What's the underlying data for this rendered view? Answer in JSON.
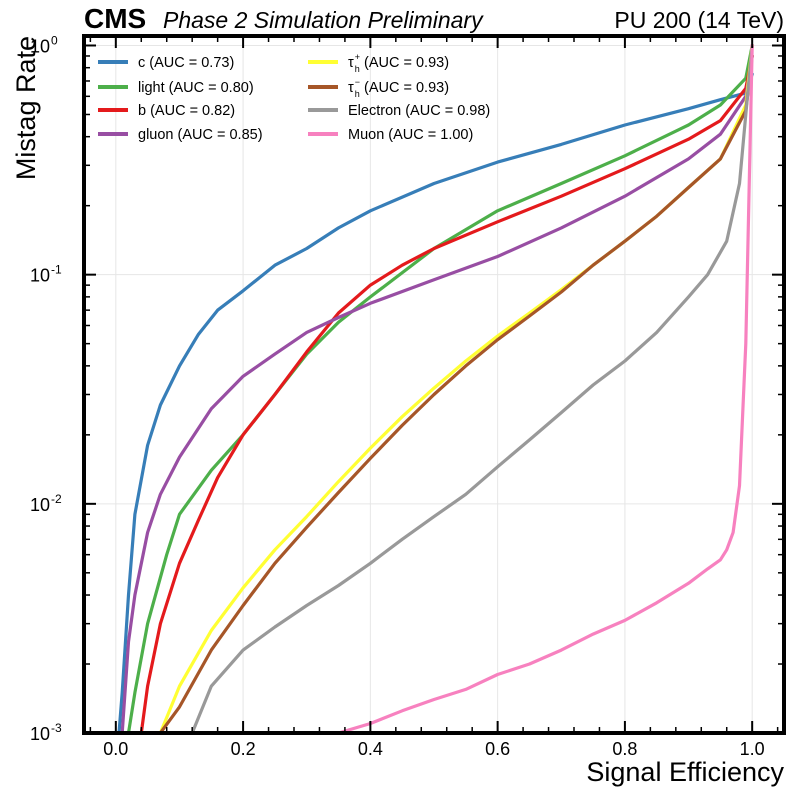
{
  "header": {
    "experiment": "CMS",
    "status": "Phase 2 Simulation Preliminary",
    "conditions": "PU 200 (14 TeV)"
  },
  "chart_data": {
    "type": "line",
    "title": "",
    "xlabel": "Signal Efficiency",
    "ylabel": "Mistag Rate",
    "xlim": [
      -0.05,
      1.05
    ],
    "ylim": [
      0.001,
      1.1
    ],
    "yscale": "log",
    "grid": true,
    "legend_position": "top-left",
    "x_ticks": [
      "0.0",
      "0.2",
      "0.4",
      "0.6",
      "0.8",
      "1.0"
    ],
    "y_ticks": [
      {
        "base": "10",
        "exp": "-3"
      },
      {
        "base": "10",
        "exp": "-2"
      },
      {
        "base": "10",
        "exp": "-1"
      },
      {
        "base": "10",
        "exp": "0"
      }
    ],
    "series": [
      {
        "name": "c",
        "label": "c (AUC = 0.73)",
        "color": "#377eb8",
        "x": [
          0.005,
          0.01,
          0.02,
          0.03,
          0.05,
          0.07,
          0.1,
          0.13,
          0.16,
          0.2,
          0.25,
          0.3,
          0.35,
          0.4,
          0.5,
          0.6,
          0.7,
          0.8,
          0.9,
          0.95,
          0.99,
          1.0
        ],
        "y": [
          0.001,
          0.0015,
          0.004,
          0.009,
          0.018,
          0.027,
          0.04,
          0.055,
          0.07,
          0.085,
          0.11,
          0.13,
          0.16,
          0.19,
          0.25,
          0.31,
          0.37,
          0.45,
          0.53,
          0.58,
          0.62,
          0.75
        ]
      },
      {
        "name": "light",
        "label": "light (AUC = 0.80)",
        "color": "#4daf4a",
        "x": [
          0.02,
          0.03,
          0.05,
          0.08,
          0.1,
          0.15,
          0.2,
          0.25,
          0.3,
          0.35,
          0.4,
          0.5,
          0.6,
          0.7,
          0.8,
          0.9,
          0.95,
          0.99,
          1.0
        ],
        "y": [
          0.001,
          0.0015,
          0.003,
          0.006,
          0.009,
          0.014,
          0.02,
          0.03,
          0.045,
          0.062,
          0.08,
          0.13,
          0.19,
          0.25,
          0.33,
          0.45,
          0.55,
          0.72,
          1.0
        ]
      },
      {
        "name": "b",
        "label": "b (AUC = 0.82)",
        "color": "#e41a1c",
        "x": [
          0.04,
          0.05,
          0.07,
          0.1,
          0.13,
          0.16,
          0.2,
          0.25,
          0.3,
          0.35,
          0.4,
          0.45,
          0.5,
          0.6,
          0.7,
          0.8,
          0.9,
          0.95,
          0.99,
          1.0
        ],
        "y": [
          0.001,
          0.0016,
          0.003,
          0.0055,
          0.0085,
          0.013,
          0.02,
          0.03,
          0.046,
          0.068,
          0.09,
          0.11,
          0.13,
          0.17,
          0.22,
          0.29,
          0.39,
          0.47,
          0.65,
          0.9
        ]
      },
      {
        "name": "gluon",
        "label": "gluon (AUC = 0.85)",
        "color": "#984ea3",
        "x": [
          0.01,
          0.02,
          0.03,
          0.05,
          0.07,
          0.1,
          0.15,
          0.2,
          0.25,
          0.3,
          0.35,
          0.4,
          0.5,
          0.6,
          0.7,
          0.8,
          0.9,
          0.95,
          0.99,
          1.0
        ],
        "y": [
          0.001,
          0.0025,
          0.004,
          0.0075,
          0.011,
          0.016,
          0.026,
          0.036,
          0.045,
          0.056,
          0.065,
          0.075,
          0.095,
          0.12,
          0.16,
          0.22,
          0.32,
          0.41,
          0.6,
          0.9
        ]
      },
      {
        "name": "tau_h_plus",
        "label": "τh+ (AUC = 0.93)",
        "color": "#ffff33",
        "x": [
          0.07,
          0.1,
          0.15,
          0.2,
          0.25,
          0.3,
          0.35,
          0.4,
          0.45,
          0.5,
          0.55,
          0.6,
          0.65,
          0.7,
          0.75,
          0.8,
          0.85,
          0.9,
          0.95,
          0.99,
          1.0
        ],
        "y": [
          0.001,
          0.0016,
          0.0028,
          0.0043,
          0.0063,
          0.0088,
          0.0125,
          0.0175,
          0.024,
          0.032,
          0.042,
          0.054,
          0.068,
          0.086,
          0.11,
          0.14,
          0.18,
          0.24,
          0.32,
          0.55,
          1.0
        ]
      },
      {
        "name": "tau_h_minus",
        "label": "τh− (AUC = 0.93)",
        "color": "#a65628",
        "x": [
          0.07,
          0.1,
          0.15,
          0.2,
          0.25,
          0.3,
          0.35,
          0.4,
          0.45,
          0.5,
          0.55,
          0.6,
          0.65,
          0.7,
          0.75,
          0.8,
          0.85,
          0.9,
          0.95,
          0.99,
          1.0
        ],
        "y": [
          0.001,
          0.0013,
          0.0023,
          0.0036,
          0.0055,
          0.0079,
          0.0112,
          0.0158,
          0.022,
          0.03,
          0.04,
          0.052,
          0.066,
          0.084,
          0.11,
          0.14,
          0.18,
          0.24,
          0.32,
          0.52,
          0.9
        ]
      },
      {
        "name": "electron",
        "label": "Electron (AUC = 0.98)",
        "color": "#999999",
        "x": [
          0.12,
          0.15,
          0.2,
          0.25,
          0.3,
          0.35,
          0.4,
          0.45,
          0.5,
          0.55,
          0.6,
          0.65,
          0.7,
          0.75,
          0.8,
          0.85,
          0.9,
          0.93,
          0.96,
          0.98,
          0.99,
          1.0
        ],
        "y": [
          0.001,
          0.0016,
          0.0023,
          0.0029,
          0.0036,
          0.0044,
          0.0055,
          0.007,
          0.0088,
          0.011,
          0.0145,
          0.019,
          0.025,
          0.033,
          0.042,
          0.056,
          0.08,
          0.1,
          0.14,
          0.25,
          0.5,
          1.0
        ]
      },
      {
        "name": "muon",
        "label": "Muon (AUC = 1.00)",
        "color": "#f781bf",
        "x": [
          0.35,
          0.4,
          0.45,
          0.5,
          0.55,
          0.6,
          0.65,
          0.7,
          0.75,
          0.8,
          0.85,
          0.9,
          0.93,
          0.95,
          0.96,
          0.97,
          0.98,
          0.99,
          1.0
        ],
        "y": [
          0.001,
          0.0011,
          0.00125,
          0.0014,
          0.00155,
          0.0018,
          0.002,
          0.0023,
          0.0027,
          0.0031,
          0.0037,
          0.0045,
          0.0052,
          0.0057,
          0.0063,
          0.0075,
          0.012,
          0.05,
          1.0
        ]
      }
    ]
  }
}
